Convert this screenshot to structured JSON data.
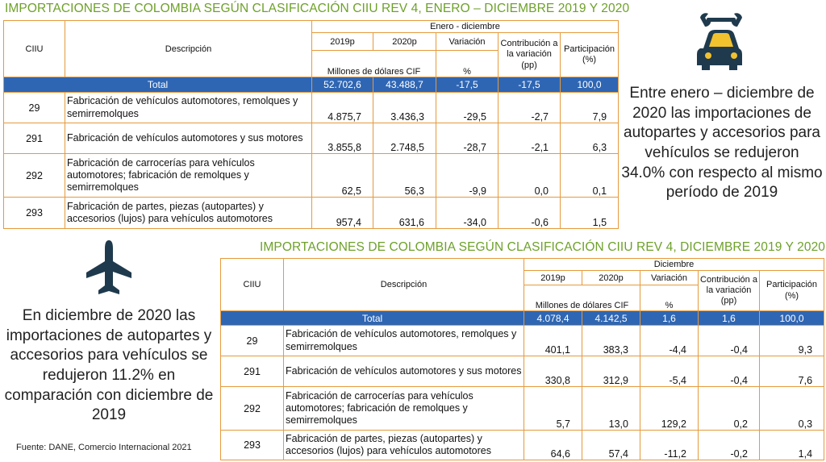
{
  "colors": {
    "title": "#6ea12a",
    "table_border": "#e59a3c",
    "total_bg": "#2f66b3",
    "icon": "#1f3a4d",
    "icon_accent": "#f2c12e"
  },
  "icons": [
    "wrench-car-icon",
    "airplane-icon"
  ],
  "table1": {
    "title": "IMPORTACIONES DE COLOMBIA SEGÚN CLASIFICACIÓN CIIU REV 4, ENERO – DICIEMBRE 2019 Y 2020",
    "period": "Enero - diciembre",
    "headers": {
      "ciiu": "CIIU",
      "descripcion": "Descripción",
      "y2019": "2019p",
      "y2020": "2020p",
      "variacion": "Variación",
      "contribucion": "Contribución a la variación (pp)",
      "participacion": "Participación (%)",
      "millones": "Millones de dólares CIF",
      "pct": "%"
    },
    "total": {
      "label": "Total",
      "v2019": "52.702,6",
      "v2020": "43.488,7",
      "var": "-17,5",
      "contrib": "-17,5",
      "part": "100,0"
    },
    "rows": [
      {
        "ciiu": "29",
        "desc": "Fabricación de vehículos automotores, remolques y semirremolques",
        "v2019": "4.875,7",
        "v2020": "3.436,3",
        "var": "-29,5",
        "contrib": "-2,7",
        "part": "7,9"
      },
      {
        "ciiu": "291",
        "desc": "Fabricación de vehículos automotores y sus motores",
        "v2019": "3.855,8",
        "v2020": "2.748,5",
        "var": "-28,7",
        "contrib": "-2,1",
        "part": "6,3"
      },
      {
        "ciiu": "292",
        "desc": "Fabricación de carrocerías para vehículos automotores; fabricación de remolques y semirremolques",
        "v2019": "62,5",
        "v2020": "56,3",
        "var": "-9,9",
        "contrib": "0,0",
        "part": "0,1"
      },
      {
        "ciiu": "293",
        "desc": "Fabricación de partes, piezas (autopartes) y accesorios (lujos) para vehículos automotores",
        "v2019": "957,4",
        "v2020": "631,6",
        "var": "-34,0",
        "contrib": "-0,6",
        "part": "1,5"
      }
    ]
  },
  "table2": {
    "title": "IMPORTACIONES DE COLOMBIA SEGÚN CLASIFICACIÓN CIIU REV 4, DICIEMBRE 2019 Y 2020",
    "period": "Diciembre",
    "headers": {
      "ciiu": "CIIU",
      "descripcion": "Descripción",
      "y2019": "2019p",
      "y2020": "2020p",
      "variacion": "Variación",
      "contribucion": "Contribución a la variación (pp)",
      "participacion": "Participación (%)",
      "millones": "Millones de dólares CIF",
      "pct": "%"
    },
    "total": {
      "label": "Total",
      "v2019": "4.078,4",
      "v2020": "4.142,5",
      "var": "1,6",
      "contrib": "1,6",
      "part": "100,0"
    },
    "rows": [
      {
        "ciiu": "29",
        "desc": "Fabricación de vehículos automotores, remolques y semirremolques",
        "v2019": "401,1",
        "v2020": "383,3",
        "var": "-4,4",
        "contrib": "-0,4",
        "part": "9,3"
      },
      {
        "ciiu": "291",
        "desc": "Fabricación de vehículos automotores y sus motores",
        "v2019": "330,8",
        "v2020": "312,9",
        "var": "-5,4",
        "contrib": "-0,4",
        "part": "7,6"
      },
      {
        "ciiu": "292",
        "desc": "Fabricación de carrocerías para vehículos automotores; fabricación de remolques y semirremolques",
        "v2019": "5,7",
        "v2020": "13,0",
        "var": "129,2",
        "contrib": "0,2",
        "part": "0,3"
      },
      {
        "ciiu": "293",
        "desc": "Fabricación de partes, piezas (autopartes) y accesorios (lujos) para vehículos automotores",
        "v2019": "64,6",
        "v2020": "57,4",
        "var": "-11,2",
        "contrib": "-0,2",
        "part": "1,4"
      }
    ]
  },
  "side_text_1": "Entre enero – diciembre de 2020 las importaciones de autopartes y accesorios para vehículos se redujeron 34.0% con respecto al mismo período de 2019",
  "side_text_2": "En diciembre de 2020 las importaciones de autopartes y accesorios para vehículos se redujeron 11.2% en comparación con diciembre de 2019",
  "source": "Fuente: DANE, Comercio Internacional 2021"
}
